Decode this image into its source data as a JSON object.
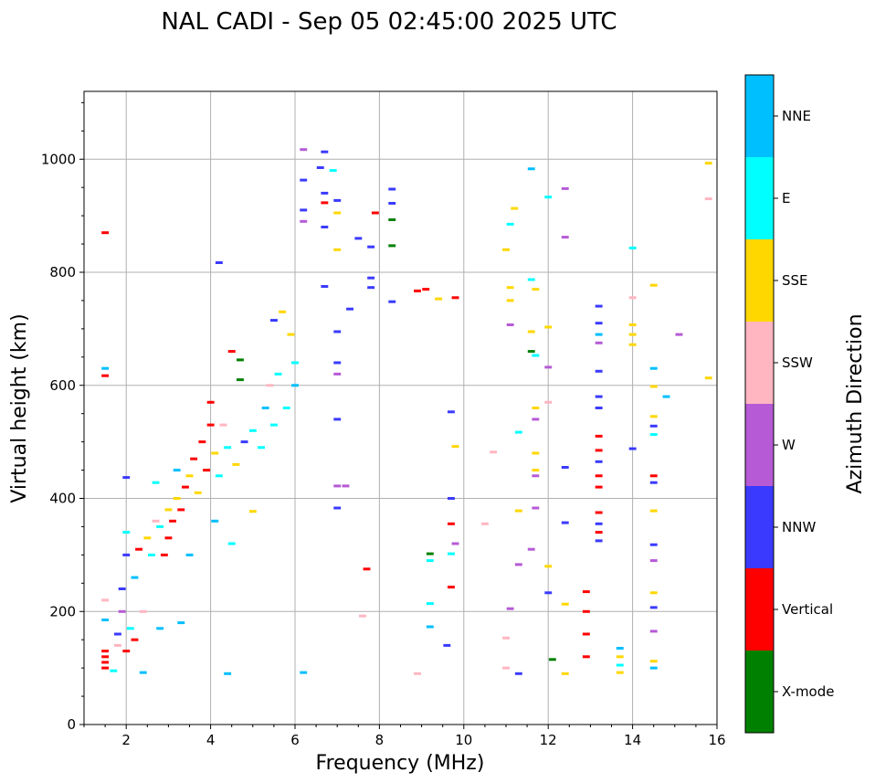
{
  "chart_data": {
    "type": "scatter",
    "title": "NAL CADI - Sep 05 02:45:00 2025 UTC",
    "xlabel": "Frequency (MHz)",
    "ylabel": "Virtual height (km)",
    "xlim": [
      1,
      16
    ],
    "ylim": [
      0,
      1120
    ],
    "xticks": [
      2,
      4,
      6,
      8,
      10,
      12,
      14,
      16
    ],
    "yticks": [
      0,
      200,
      400,
      600,
      800,
      1000
    ],
    "grid": true,
    "colorbar": {
      "title": "Azimuth Direction",
      "categories": [
        {
          "name": "X-mode",
          "color": "#008000"
        },
        {
          "name": "Vertical",
          "color": "#ff0000"
        },
        {
          "name": "NNW",
          "color": "#3a3aff"
        },
        {
          "name": "W",
          "color": "#b65ad6"
        },
        {
          "name": "SSW",
          "color": "#ffb6c1"
        },
        {
          "name": "SSE",
          "color": "#ffd700"
        },
        {
          "name": "E",
          "color": "#00ffff"
        },
        {
          "name": "NNE",
          "color": "#00bfff"
        }
      ]
    },
    "points": [
      {
        "f": 1.5,
        "h": 130,
        "d": "Vertical"
      },
      {
        "f": 1.5,
        "h": 120,
        "d": "Vertical"
      },
      {
        "f": 1.5,
        "h": 110,
        "d": "Vertical"
      },
      {
        "f": 1.5,
        "h": 100,
        "d": "Vertical"
      },
      {
        "f": 1.5,
        "h": 870,
        "d": "Vertical"
      },
      {
        "f": 1.5,
        "h": 630,
        "d": "NNE"
      },
      {
        "f": 1.5,
        "h": 617,
        "d": "Vertical"
      },
      {
        "f": 1.5,
        "h": 220,
        "d": "SSW"
      },
      {
        "f": 1.5,
        "h": 185,
        "d": "NNE"
      },
      {
        "f": 1.7,
        "h": 95,
        "d": "E"
      },
      {
        "f": 1.8,
        "h": 140,
        "d": "SSW"
      },
      {
        "f": 1.8,
        "h": 160,
        "d": "NNW"
      },
      {
        "f": 1.9,
        "h": 200,
        "d": "W"
      },
      {
        "f": 1.9,
        "h": 240,
        "d": "NNW"
      },
      {
        "f": 2.0,
        "h": 130,
        "d": "Vertical"
      },
      {
        "f": 2.0,
        "h": 300,
        "d": "NNW"
      },
      {
        "f": 2.0,
        "h": 340,
        "d": "E"
      },
      {
        "f": 2.0,
        "h": 437,
        "d": "NNW"
      },
      {
        "f": 2.1,
        "h": 170,
        "d": "E"
      },
      {
        "f": 2.2,
        "h": 150,
        "d": "Vertical"
      },
      {
        "f": 2.2,
        "h": 260,
        "d": "NNE"
      },
      {
        "f": 2.3,
        "h": 310,
        "d": "Vertical"
      },
      {
        "f": 2.4,
        "h": 92,
        "d": "NNE"
      },
      {
        "f": 2.4,
        "h": 200,
        "d": "SSW"
      },
      {
        "f": 2.5,
        "h": 330,
        "d": "SSE"
      },
      {
        "f": 2.6,
        "h": 300,
        "d": "E"
      },
      {
        "f": 2.7,
        "h": 360,
        "d": "SSW"
      },
      {
        "f": 2.7,
        "h": 428,
        "d": "E"
      },
      {
        "f": 2.8,
        "h": 350,
        "d": "E"
      },
      {
        "f": 2.8,
        "h": 170,
        "d": "NNE"
      },
      {
        "f": 2.9,
        "h": 300,
        "d": "Vertical"
      },
      {
        "f": 3.0,
        "h": 380,
        "d": "SSE"
      },
      {
        "f": 3.0,
        "h": 330,
        "d": "Vertical"
      },
      {
        "f": 3.1,
        "h": 360,
        "d": "Vertical"
      },
      {
        "f": 3.2,
        "h": 400,
        "d": "SSE"
      },
      {
        "f": 3.2,
        "h": 450,
        "d": "NNE"
      },
      {
        "f": 3.3,
        "h": 180,
        "d": "NNE"
      },
      {
        "f": 3.3,
        "h": 380,
        "d": "Vertical"
      },
      {
        "f": 3.4,
        "h": 420,
        "d": "Vertical"
      },
      {
        "f": 3.5,
        "h": 440,
        "d": "SSE"
      },
      {
        "f": 3.5,
        "h": 300,
        "d": "NNE"
      },
      {
        "f": 3.6,
        "h": 470,
        "d": "Vertical"
      },
      {
        "f": 3.7,
        "h": 410,
        "d": "SSE"
      },
      {
        "f": 3.8,
        "h": 500,
        "d": "Vertical"
      },
      {
        "f": 3.9,
        "h": 450,
        "d": "Vertical"
      },
      {
        "f": 4.0,
        "h": 530,
        "d": "Vertical"
      },
      {
        "f": 4.0,
        "h": 570,
        "d": "Vertical"
      },
      {
        "f": 4.1,
        "h": 480,
        "d": "SSE"
      },
      {
        "f": 4.1,
        "h": 360,
        "d": "NNE"
      },
      {
        "f": 4.2,
        "h": 817,
        "d": "NNW"
      },
      {
        "f": 4.2,
        "h": 440,
        "d": "E"
      },
      {
        "f": 4.3,
        "h": 530,
        "d": "SSW"
      },
      {
        "f": 4.4,
        "h": 90,
        "d": "NNE"
      },
      {
        "f": 4.4,
        "h": 490,
        "d": "E"
      },
      {
        "f": 4.5,
        "h": 660,
        "d": "Vertical"
      },
      {
        "f": 4.5,
        "h": 320,
        "d": "E"
      },
      {
        "f": 4.6,
        "h": 460,
        "d": "SSE"
      },
      {
        "f": 4.7,
        "h": 645,
        "d": "X-mode"
      },
      {
        "f": 4.7,
        "h": 610,
        "d": "X-mode"
      },
      {
        "f": 4.8,
        "h": 500,
        "d": "NNW"
      },
      {
        "f": 5.0,
        "h": 377,
        "d": "SSE"
      },
      {
        "f": 5.0,
        "h": 520,
        "d": "E"
      },
      {
        "f": 5.2,
        "h": 490,
        "d": "E"
      },
      {
        "f": 5.3,
        "h": 560,
        "d": "NNE"
      },
      {
        "f": 5.4,
        "h": 600,
        "d": "SSW"
      },
      {
        "f": 5.5,
        "h": 715,
        "d": "NNW"
      },
      {
        "f": 5.5,
        "h": 530,
        "d": "E"
      },
      {
        "f": 5.6,
        "h": 620,
        "d": "E"
      },
      {
        "f": 5.7,
        "h": 730,
        "d": "SSE"
      },
      {
        "f": 5.8,
        "h": 560,
        "d": "E"
      },
      {
        "f": 5.9,
        "h": 690,
        "d": "SSE"
      },
      {
        "f": 6.0,
        "h": 640,
        "d": "E"
      },
      {
        "f": 6.0,
        "h": 600,
        "d": "NNE"
      },
      {
        "f": 6.2,
        "h": 92,
        "d": "NNE"
      },
      {
        "f": 6.2,
        "h": 1017,
        "d": "W"
      },
      {
        "f": 6.2,
        "h": 963,
        "d": "NNW"
      },
      {
        "f": 6.2,
        "h": 910,
        "d": "NNW"
      },
      {
        "f": 6.2,
        "h": 890,
        "d": "W"
      },
      {
        "f": 6.6,
        "h": 985,
        "d": "NNW"
      },
      {
        "f": 6.7,
        "h": 1013,
        "d": "NNW"
      },
      {
        "f": 6.7,
        "h": 940,
        "d": "NNW"
      },
      {
        "f": 6.7,
        "h": 923,
        "d": "Vertical"
      },
      {
        "f": 6.7,
        "h": 880,
        "d": "NNW"
      },
      {
        "f": 6.7,
        "h": 775,
        "d": "NNW"
      },
      {
        "f": 6.9,
        "h": 980,
        "d": "E"
      },
      {
        "f": 7.0,
        "h": 927,
        "d": "NNW"
      },
      {
        "f": 7.0,
        "h": 905,
        "d": "SSE"
      },
      {
        "f": 7.0,
        "h": 840,
        "d": "SSE"
      },
      {
        "f": 7.0,
        "h": 695,
        "d": "NNW"
      },
      {
        "f": 7.0,
        "h": 640,
        "d": "NNW"
      },
      {
        "f": 7.0,
        "h": 620,
        "d": "W"
      },
      {
        "f": 7.0,
        "h": 540,
        "d": "NNW"
      },
      {
        "f": 7.0,
        "h": 422,
        "d": "W"
      },
      {
        "f": 7.0,
        "h": 383,
        "d": "NNW"
      },
      {
        "f": 7.2,
        "h": 422,
        "d": "W"
      },
      {
        "f": 7.3,
        "h": 735,
        "d": "NNW"
      },
      {
        "f": 7.5,
        "h": 860,
        "d": "NNW"
      },
      {
        "f": 7.6,
        "h": 192,
        "d": "SSW"
      },
      {
        "f": 7.7,
        "h": 275,
        "d": "Vertical"
      },
      {
        "f": 7.8,
        "h": 845,
        "d": "NNW"
      },
      {
        "f": 7.8,
        "h": 790,
        "d": "NNW"
      },
      {
        "f": 7.8,
        "h": 773,
        "d": "NNW"
      },
      {
        "f": 7.9,
        "h": 905,
        "d": "Vertical"
      },
      {
        "f": 8.3,
        "h": 947,
        "d": "NNW"
      },
      {
        "f": 8.3,
        "h": 922,
        "d": "NNW"
      },
      {
        "f": 8.3,
        "h": 893,
        "d": "X-mode"
      },
      {
        "f": 8.3,
        "h": 847,
        "d": "X-mode"
      },
      {
        "f": 8.3,
        "h": 748,
        "d": "NNW"
      },
      {
        "f": 8.9,
        "h": 90,
        "d": "SSW"
      },
      {
        "f": 8.9,
        "h": 767,
        "d": "Vertical"
      },
      {
        "f": 9.1,
        "h": 770,
        "d": "Vertical"
      },
      {
        "f": 9.2,
        "h": 302,
        "d": "X-mode"
      },
      {
        "f": 9.2,
        "h": 290,
        "d": "E"
      },
      {
        "f": 9.2,
        "h": 214,
        "d": "E"
      },
      {
        "f": 9.2,
        "h": 173,
        "d": "NNE"
      },
      {
        "f": 9.4,
        "h": 753,
        "d": "SSE"
      },
      {
        "f": 9.6,
        "h": 140,
        "d": "NNW"
      },
      {
        "f": 9.7,
        "h": 553,
        "d": "NNW"
      },
      {
        "f": 9.7,
        "h": 400,
        "d": "NNW"
      },
      {
        "f": 9.7,
        "h": 355,
        "d": "Vertical"
      },
      {
        "f": 9.7,
        "h": 302,
        "d": "E"
      },
      {
        "f": 9.7,
        "h": 243,
        "d": "Vertical"
      },
      {
        "f": 9.8,
        "h": 755,
        "d": "Vertical"
      },
      {
        "f": 9.8,
        "h": 492,
        "d": "SSE"
      },
      {
        "f": 9.8,
        "h": 320,
        "d": "W"
      },
      {
        "f": 10.5,
        "h": 355,
        "d": "SSW"
      },
      {
        "f": 10.7,
        "h": 482,
        "d": "SSW"
      },
      {
        "f": 11.0,
        "h": 840,
        "d": "SSE"
      },
      {
        "f": 11.0,
        "h": 153,
        "d": "SSW"
      },
      {
        "f": 11.0,
        "h": 100,
        "d": "SSW"
      },
      {
        "f": 11.1,
        "h": 885,
        "d": "E"
      },
      {
        "f": 11.1,
        "h": 773,
        "d": "SSE"
      },
      {
        "f": 11.1,
        "h": 750,
        "d": "SSE"
      },
      {
        "f": 11.1,
        "h": 707,
        "d": "W"
      },
      {
        "f": 11.1,
        "h": 205,
        "d": "W"
      },
      {
        "f": 11.2,
        "h": 913,
        "d": "SSE"
      },
      {
        "f": 11.3,
        "h": 517,
        "d": "E"
      },
      {
        "f": 11.3,
        "h": 378,
        "d": "SSE"
      },
      {
        "f": 11.3,
        "h": 283,
        "d": "W"
      },
      {
        "f": 11.3,
        "h": 90,
        "d": "NNW"
      },
      {
        "f": 11.6,
        "h": 983,
        "d": "NNE"
      },
      {
        "f": 11.6,
        "h": 787,
        "d": "E"
      },
      {
        "f": 11.6,
        "h": 695,
        "d": "SSE"
      },
      {
        "f": 11.6,
        "h": 660,
        "d": "X-mode"
      },
      {
        "f": 11.6,
        "h": 310,
        "d": "W"
      },
      {
        "f": 11.7,
        "h": 770,
        "d": "SSE"
      },
      {
        "f": 11.7,
        "h": 653,
        "d": "E"
      },
      {
        "f": 11.7,
        "h": 560,
        "d": "SSE"
      },
      {
        "f": 11.7,
        "h": 540,
        "d": "W"
      },
      {
        "f": 11.7,
        "h": 480,
        "d": "SSE"
      },
      {
        "f": 11.7,
        "h": 450,
        "d": "SSE"
      },
      {
        "f": 11.7,
        "h": 440,
        "d": "W"
      },
      {
        "f": 11.7,
        "h": 383,
        "d": "W"
      },
      {
        "f": 12.0,
        "h": 933,
        "d": "E"
      },
      {
        "f": 12.0,
        "h": 703,
        "d": "SSE"
      },
      {
        "f": 12.0,
        "h": 632,
        "d": "W"
      },
      {
        "f": 12.0,
        "h": 570,
        "d": "SSW"
      },
      {
        "f": 12.0,
        "h": 280,
        "d": "SSE"
      },
      {
        "f": 12.0,
        "h": 233,
        "d": "NNW"
      },
      {
        "f": 12.1,
        "h": 115,
        "d": "X-mode"
      },
      {
        "f": 12.4,
        "h": 948,
        "d": "W"
      },
      {
        "f": 12.4,
        "h": 862,
        "d": "W"
      },
      {
        "f": 12.4,
        "h": 455,
        "d": "NNW"
      },
      {
        "f": 12.4,
        "h": 357,
        "d": "NNW"
      },
      {
        "f": 12.4,
        "h": 213,
        "d": "SSE"
      },
      {
        "f": 12.4,
        "h": 90,
        "d": "SSE"
      },
      {
        "f": 12.9,
        "h": 235,
        "d": "Vertical"
      },
      {
        "f": 12.9,
        "h": 200,
        "d": "Vertical"
      },
      {
        "f": 12.9,
        "h": 160,
        "d": "Vertical"
      },
      {
        "f": 12.9,
        "h": 120,
        "d": "Vertical"
      },
      {
        "f": 13.2,
        "h": 740,
        "d": "NNW"
      },
      {
        "f": 13.2,
        "h": 710,
        "d": "NNW"
      },
      {
        "f": 13.2,
        "h": 690,
        "d": "NNE"
      },
      {
        "f": 13.2,
        "h": 675,
        "d": "W"
      },
      {
        "f": 13.2,
        "h": 625,
        "d": "NNW"
      },
      {
        "f": 13.2,
        "h": 580,
        "d": "NNW"
      },
      {
        "f": 13.2,
        "h": 560,
        "d": "NNW"
      },
      {
        "f": 13.2,
        "h": 510,
        "d": "Vertical"
      },
      {
        "f": 13.2,
        "h": 485,
        "d": "Vertical"
      },
      {
        "f": 13.2,
        "h": 465,
        "d": "NNW"
      },
      {
        "f": 13.2,
        "h": 440,
        "d": "Vertical"
      },
      {
        "f": 13.2,
        "h": 420,
        "d": "Vertical"
      },
      {
        "f": 13.2,
        "h": 375,
        "d": "Vertical"
      },
      {
        "f": 13.2,
        "h": 355,
        "d": "NNW"
      },
      {
        "f": 13.2,
        "h": 340,
        "d": "Vertical"
      },
      {
        "f": 13.2,
        "h": 325,
        "d": "NNW"
      },
      {
        "f": 13.7,
        "h": 135,
        "d": "NNE"
      },
      {
        "f": 13.7,
        "h": 120,
        "d": "SSE"
      },
      {
        "f": 13.7,
        "h": 105,
        "d": "E"
      },
      {
        "f": 13.7,
        "h": 92,
        "d": "SSE"
      },
      {
        "f": 14.0,
        "h": 843,
        "d": "E"
      },
      {
        "f": 14.0,
        "h": 755,
        "d": "SSW"
      },
      {
        "f": 14.0,
        "h": 707,
        "d": "SSE"
      },
      {
        "f": 14.0,
        "h": 690,
        "d": "SSE"
      },
      {
        "f": 14.0,
        "h": 672,
        "d": "SSE"
      },
      {
        "f": 14.0,
        "h": 488,
        "d": "NNW"
      },
      {
        "f": 14.5,
        "h": 777,
        "d": "SSE"
      },
      {
        "f": 14.5,
        "h": 630,
        "d": "NNE"
      },
      {
        "f": 14.5,
        "h": 598,
        "d": "SSE"
      },
      {
        "f": 14.5,
        "h": 545,
        "d": "SSE"
      },
      {
        "f": 14.5,
        "h": 528,
        "d": "NNW"
      },
      {
        "f": 14.5,
        "h": 513,
        "d": "E"
      },
      {
        "f": 14.5,
        "h": 440,
        "d": "Vertical"
      },
      {
        "f": 14.5,
        "h": 428,
        "d": "NNW"
      },
      {
        "f": 14.5,
        "h": 378,
        "d": "SSE"
      },
      {
        "f": 14.5,
        "h": 318,
        "d": "NNW"
      },
      {
        "f": 14.5,
        "h": 290,
        "d": "W"
      },
      {
        "f": 14.5,
        "h": 233,
        "d": "SSE"
      },
      {
        "f": 14.5,
        "h": 207,
        "d": "NNW"
      },
      {
        "f": 14.5,
        "h": 165,
        "d": "W"
      },
      {
        "f": 14.5,
        "h": 112,
        "d": "SSE"
      },
      {
        "f": 14.5,
        "h": 100,
        "d": "NNE"
      },
      {
        "f": 14.8,
        "h": 580,
        "d": "NNE"
      },
      {
        "f": 15.1,
        "h": 690,
        "d": "W"
      },
      {
        "f": 15.8,
        "h": 993,
        "d": "SSE"
      },
      {
        "f": 15.8,
        "h": 930,
        "d": "SSW"
      },
      {
        "f": 15.8,
        "h": 613,
        "d": "SSE"
      }
    ]
  }
}
